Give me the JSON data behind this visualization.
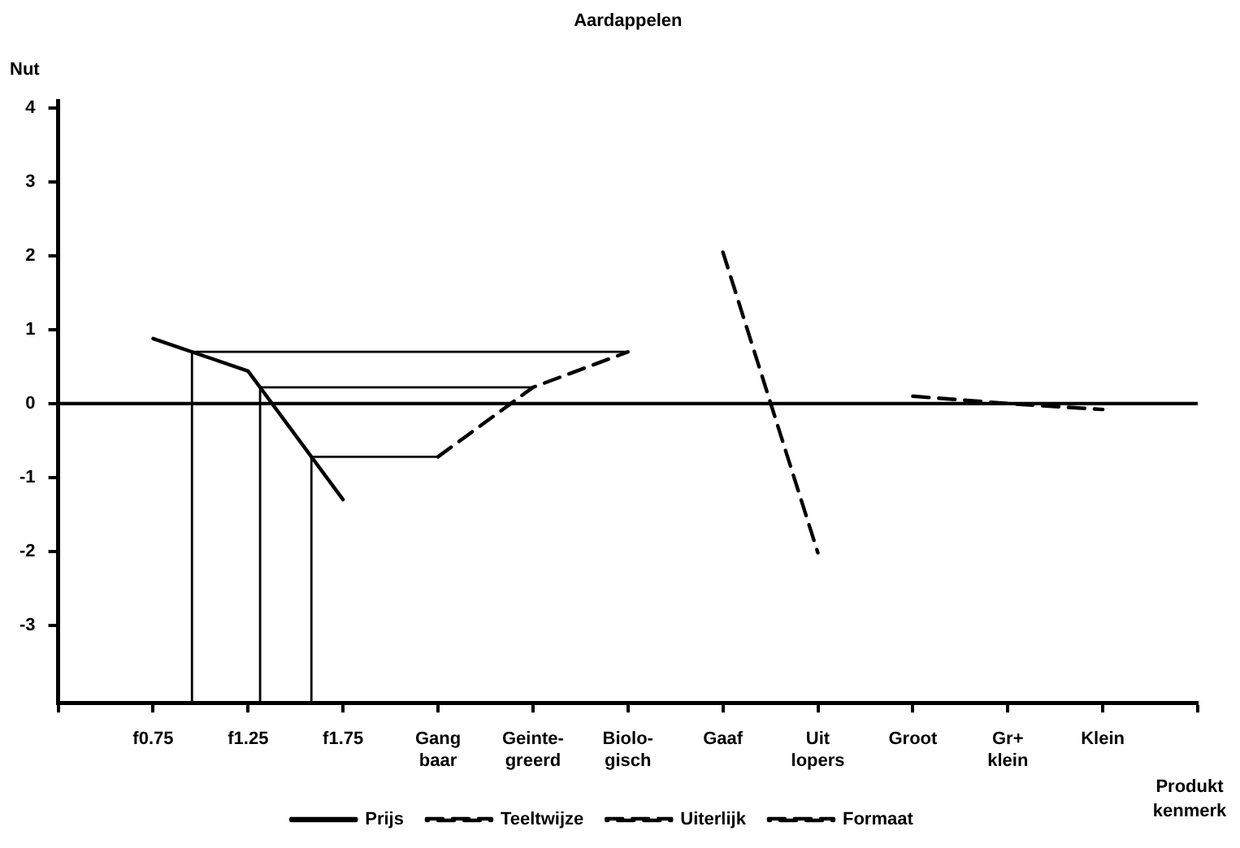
{
  "chart_data": {
    "type": "line",
    "title": "Aardappelen",
    "ylabel": "Nut",
    "xlabel": "Produkt kenmerk",
    "categories": [
      null,
      "f0.75",
      "f1.25",
      "f1.75",
      "Gang\nbaar",
      "Geinte-\ngreerd",
      "Biolo-\ngisch",
      "Gaaf",
      "Uit\nlopers",
      "Groot",
      "Gr+\nklein",
      "Klein",
      null
    ],
    "ylim": [
      -4.05,
      4.1
    ],
    "yticks": [
      -3,
      -2,
      -1,
      0,
      1,
      2,
      3,
      4
    ],
    "series": [
      {
        "name": "Prijs",
        "color": "#000000",
        "line_style": "solid",
        "values": [
          null,
          0.88,
          0.44,
          -1.3,
          null,
          null,
          null,
          null,
          null,
          null,
          null,
          null,
          null
        ]
      },
      {
        "name": "Teeltwijze",
        "color": "#000000",
        "line_style": "dashed",
        "values": [
          null,
          null,
          null,
          null,
          -0.72,
          0.22,
          0.7,
          null,
          null,
          null,
          null,
          null,
          null
        ]
      },
      {
        "name": "Uiterlijk",
        "color": "#000000",
        "line_style": "dashed",
        "values": [
          null,
          null,
          null,
          null,
          null,
          null,
          null,
          2.05,
          -2.02,
          null,
          null,
          null,
          null
        ]
      },
      {
        "name": "Formaat",
        "color": "#000000",
        "line_style": "dashed",
        "values": [
          null,
          null,
          null,
          null,
          null,
          null,
          null,
          null,
          null,
          0.1,
          0,
          -0.08,
          null
        ]
      }
    ],
    "ref_lines": [
      {
        "axis": "y",
        "value": 0,
        "color": "#000000"
      }
    ],
    "legend": "bottom",
    "grid": false,
    "marker": "none"
  }
}
